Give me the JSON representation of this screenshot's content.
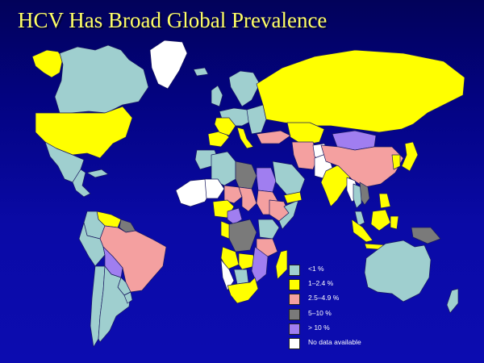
{
  "slide": {
    "title": "HCV Has Broad Global Prevalence"
  },
  "colors": {
    "title": "#ffff66",
    "background": "#05059a",
    "lt1": "#9fcfcf",
    "p1_2": "#ffff00",
    "p2_5": "#f4a0a0",
    "p5_10": "#7a7a7a",
    "gt10": "#a07ef0",
    "nodata": "#ffffff"
  },
  "map": {
    "regions": [
      {
        "name": "Alaska",
        "category": "p1_2"
      },
      {
        "name": "Canada",
        "category": "lt1"
      },
      {
        "name": "Greenland",
        "category": "nodata"
      },
      {
        "name": "United States",
        "category": "p1_2"
      },
      {
        "name": "Mexico",
        "category": "lt1"
      },
      {
        "name": "Central America",
        "category": "lt1"
      },
      {
        "name": "Cuba",
        "category": "lt1"
      },
      {
        "name": "Venezuela",
        "category": "p1_2"
      },
      {
        "name": "Colombia",
        "category": "lt1"
      },
      {
        "name": "Guianas",
        "category": "p5_10"
      },
      {
        "name": "Brazil",
        "category": "p2_5"
      },
      {
        "name": "Peru",
        "category": "lt1"
      },
      {
        "name": "Bolivia",
        "category": "gt10"
      },
      {
        "name": "Paraguay",
        "category": "lt1"
      },
      {
        "name": "Chile",
        "category": "lt1"
      },
      {
        "name": "Argentina",
        "category": "lt1"
      },
      {
        "name": "Uruguay",
        "category": "lt1"
      },
      {
        "name": "Iceland",
        "category": "lt1"
      },
      {
        "name": "United Kingdom",
        "category": "lt1"
      },
      {
        "name": "Scandinavia",
        "category": "lt1"
      },
      {
        "name": "Western Europe",
        "category": "lt1"
      },
      {
        "name": "Spain",
        "category": "p1_2"
      },
      {
        "name": "France",
        "category": "p1_2"
      },
      {
        "name": "Italy",
        "category": "p1_2"
      },
      {
        "name": "Eastern Europe",
        "category": "lt1"
      },
      {
        "name": "Russia",
        "category": "p1_2"
      },
      {
        "name": "Kazakhstan",
        "category": "p1_2"
      },
      {
        "name": "Morocco",
        "category": "lt1"
      },
      {
        "name": "Algeria",
        "category": "lt1"
      },
      {
        "name": "Libya",
        "category": "p5_10"
      },
      {
        "name": "Egypt",
        "category": "gt10"
      },
      {
        "name": "Sudan",
        "category": "p2_5"
      },
      {
        "name": "West Africa",
        "category": "nodata"
      },
      {
        "name": "Mali",
        "category": "nodata"
      },
      {
        "name": "Niger",
        "category": "p2_5"
      },
      {
        "name": "Chad",
        "category": "p2_5"
      },
      {
        "name": "Nigeria",
        "category": "p1_2"
      },
      {
        "name": "Cameroon",
        "category": "gt10"
      },
      {
        "name": "Ethiopia",
        "category": "p2_5"
      },
      {
        "name": "Somalia",
        "category": "lt1"
      },
      {
        "name": "Congo DRC",
        "category": "p5_10"
      },
      {
        "name": "Gabon",
        "category": "p1_2"
      },
      {
        "name": "Kenya",
        "category": "lt1"
      },
      {
        "name": "Tanzania",
        "category": "p2_5"
      },
      {
        "name": "Angola",
        "category": "p1_2"
      },
      {
        "name": "Zambia",
        "category": "p1_2"
      },
      {
        "name": "Mozambique",
        "category": "gt10"
      },
      {
        "name": "Namibia",
        "category": "nodata"
      },
      {
        "name": "Botswana",
        "category": "lt1"
      },
      {
        "name": "South Africa",
        "category": "p1_2"
      },
      {
        "name": "Madagascar",
        "category": "p1_2"
      },
      {
        "name": "Turkey",
        "category": "p2_5"
      },
      {
        "name": "Saudi Arabia",
        "category": "lt1"
      },
      {
        "name": "Yemen",
        "category": "p1_2"
      },
      {
        "name": "Iran",
        "category": "p2_5"
      },
      {
        "name": "Afghanistan",
        "category": "nodata"
      },
      {
        "name": "Pakistan",
        "category": "nodata"
      },
      {
        "name": "India",
        "category": "p1_2"
      },
      {
        "name": "Mongolia",
        "category": "gt10"
      },
      {
        "name": "China",
        "category": "p2_5"
      },
      {
        "name": "Korea",
        "category": "p1_2"
      },
      {
        "name": "Japan",
        "category": "p1_2"
      },
      {
        "name": "Myanmar",
        "category": "nodata"
      },
      {
        "name": "Thailand",
        "category": "lt1"
      },
      {
        "name": "Vietnam",
        "category": "p5_10"
      },
      {
        "name": "Malaysia",
        "category": "lt1"
      },
      {
        "name": "Philippines",
        "category": "p1_2"
      },
      {
        "name": "Sumatra",
        "category": "p1_2"
      },
      {
        "name": "Borneo",
        "category": "p1_2"
      },
      {
        "name": "Sulawesi",
        "category": "p1_2"
      },
      {
        "name": "Java",
        "category": "p1_2"
      },
      {
        "name": "New Guinea",
        "category": "p5_10"
      },
      {
        "name": "Australia",
        "category": "lt1"
      },
      {
        "name": "New Zealand",
        "category": "lt1"
      }
    ]
  },
  "legend": {
    "items": [
      {
        "key": "lt1",
        "label": "<1 %"
      },
      {
        "key": "p1_2",
        "label": "1–2.4 %"
      },
      {
        "key": "p2_5",
        "label": "2.5–4.9 %"
      },
      {
        "key": "p5_10",
        "label": "5–10 %"
      },
      {
        "key": "gt10",
        "label": "> 10 %"
      },
      {
        "key": "nodata",
        "label": "No data available"
      }
    ]
  }
}
